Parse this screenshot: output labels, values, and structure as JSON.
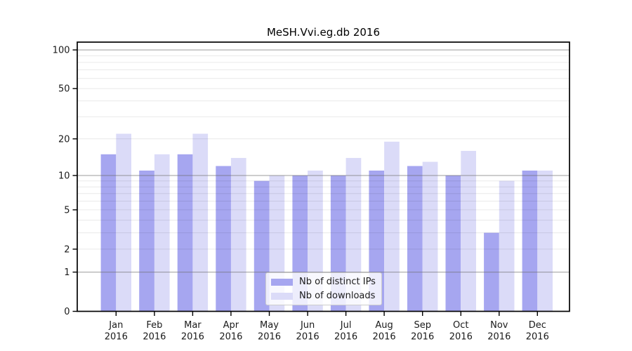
{
  "title": "MeSH.Vvi.eg.db 2016",
  "chart_data": {
    "type": "bar",
    "title": "MeSH.Vvi.eg.db 2016",
    "categories": [
      "Jan",
      "Feb",
      "Mar",
      "Apr",
      "May",
      "Jun",
      "Jul",
      "Aug",
      "Sep",
      "Oct",
      "Nov",
      "Dec"
    ],
    "category_year": "2016",
    "series": [
      {
        "name": "Nb of distinct IPs",
        "color": "#a6a6f0",
        "values": [
          15,
          11,
          15,
          12,
          9,
          10,
          10,
          11,
          12,
          10,
          3,
          11
        ]
      },
      {
        "name": "Nb of downloads",
        "color": "#dbdbf8",
        "values": [
          22,
          15,
          22,
          14,
          10,
          11,
          14,
          19,
          13,
          16,
          9,
          11
        ]
      }
    ],
    "xlabel": "",
    "ylabel": "",
    "yscale": "log10(1+value)",
    "ytick_labels": [
      0,
      1,
      2,
      5,
      10,
      20,
      50,
      100
    ],
    "major_gridlines": [
      1,
      10,
      100
    ],
    "minor_gridlines": [
      2,
      3,
      4,
      5,
      6,
      7,
      8,
      9,
      20,
      30,
      40,
      50,
      60,
      70,
      80,
      90
    ],
    "grid": true,
    "legend_position": "bottom-center"
  },
  "colors": {
    "background": "#ffffff",
    "axis": "#000000",
    "major_grid": "#9a9a9a",
    "minor_grid": "#e9e9e9",
    "tick_text": "#1a1a1a",
    "legend_border": "#cccccc"
  }
}
